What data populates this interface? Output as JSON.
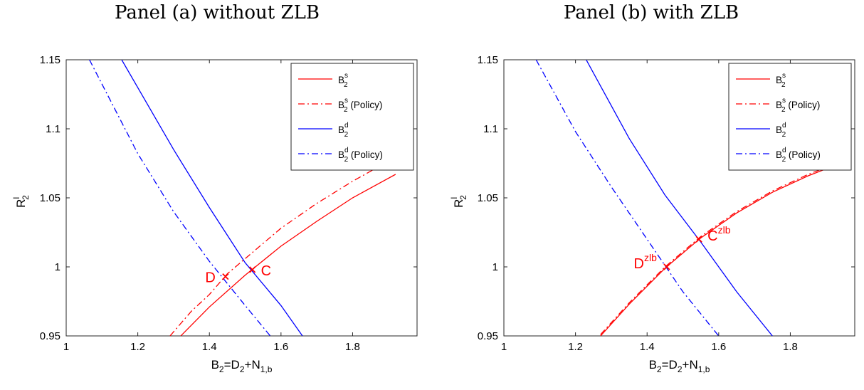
{
  "chart_data": [
    {
      "type": "line",
      "title": "Panel (a) without ZLB",
      "xlabel": {
        "main": "B",
        "sub1": "2",
        "mid": "=D",
        "sub2": "2",
        "plus": "+N",
        "sub3": "1,b"
      },
      "ylabel": {
        "main": "R",
        "sup": "l",
        "sub": "2"
      },
      "xlim": [
        1,
        1.98
      ],
      "ylim": [
        0.95,
        1.15
      ],
      "xticks": [
        "1",
        "1.2",
        "1.4",
        "1.6",
        "1.8"
      ],
      "yticks": [
        "0.95",
        "1",
        "1.05",
        "1.1",
        "1.15"
      ],
      "legend_position": "top-right",
      "series": [
        {
          "name": "B",
          "sub": "2",
          "sup": "s",
          "suffix": "",
          "color": "#ff0000",
          "dash": "solid",
          "x": [
            1.32,
            1.4,
            1.5,
            1.6,
            1.7,
            1.8,
            1.92
          ],
          "y": [
            0.95,
            0.971,
            0.994,
            1.015,
            1.033,
            1.05,
            1.067
          ]
        },
        {
          "name": "B",
          "sub": "2",
          "sup": "s",
          "suffix": " (Policy)",
          "color": "#ff0000",
          "dash": "dashdot",
          "x": [
            1.29,
            1.35,
            1.4,
            1.45,
            1.5,
            1.6,
            1.7,
            1.8,
            1.89
          ],
          "y": [
            0.95,
            0.968,
            0.98,
            0.995,
            1.006,
            1.028,
            1.046,
            1.062,
            1.075
          ]
        },
        {
          "name": "B",
          "sub": "2",
          "sup": "d",
          "suffix": "",
          "color": "#0000ff",
          "dash": "solid",
          "x": [
            1.155,
            1.3,
            1.4,
            1.5,
            1.6,
            1.66
          ],
          "y": [
            1.15,
            1.085,
            1.043,
            1.003,
            0.972,
            0.95
          ]
        },
        {
          "name": "B",
          "sub": "2",
          "sup": "d",
          "suffix": " (Policy)",
          "color": "#0000ff",
          "dash": "dashdot",
          "x": [
            1.065,
            1.2,
            1.3,
            1.4,
            1.5,
            1.57
          ],
          "y": [
            1.15,
            1.082,
            1.04,
            1.004,
            0.972,
            0.95
          ]
        }
      ],
      "points": [
        {
          "label": "D",
          "sup": "",
          "x": 1.445,
          "y": 0.993,
          "color": "#ff0000",
          "label_side": "left"
        },
        {
          "label": "C",
          "sup": "",
          "x": 1.52,
          "y": 0.998,
          "color": "#ff0000",
          "label_side": "right"
        }
      ]
    },
    {
      "type": "line",
      "title": "Panel (b) with ZLB",
      "xlabel": {
        "main": "B",
        "sub1": "2",
        "mid": "=D",
        "sub2": "2",
        "plus": "+N",
        "sub3": "1,b"
      },
      "ylabel": {
        "main": "R",
        "sup": "l",
        "sub": "2"
      },
      "xlim": [
        1,
        1.98
      ],
      "ylim": [
        0.95,
        1.15
      ],
      "xticks": [
        "1",
        "1.2",
        "1.4",
        "1.6",
        "1.8"
      ],
      "yticks": [
        "0.95",
        "1",
        "1.05",
        "1.1",
        "1.15"
      ],
      "legend_position": "top-right",
      "series": [
        {
          "name": "B",
          "sub": "2",
          "sup": "s",
          "suffix": "",
          "color": "#ff0000",
          "dash": "solid",
          "x": [
            1.27,
            1.35,
            1.45,
            1.55,
            1.65,
            1.75,
            1.85,
            1.92
          ],
          "y": [
            0.95,
            0.973,
            0.999,
            1.021,
            1.039,
            1.054,
            1.066,
            1.073
          ]
        },
        {
          "name": "B",
          "sub": "2",
          "sup": "s",
          "suffix": " (Policy)",
          "color": "#ff0000",
          "dash": "dashdot",
          "x": [
            1.27,
            1.35,
            1.45,
            1.55,
            1.65,
            1.75,
            1.85,
            1.92
          ],
          "y": [
            0.951,
            0.974,
            1.0,
            1.022,
            1.04,
            1.055,
            1.067,
            1.074
          ]
        },
        {
          "name": "B",
          "sub": "2",
          "sup": "d",
          "suffix": "",
          "color": "#0000ff",
          "dash": "solid",
          "x": [
            1.23,
            1.35,
            1.45,
            1.55,
            1.65,
            1.75
          ],
          "y": [
            1.15,
            1.093,
            1.052,
            1.018,
            0.982,
            0.95
          ]
        },
        {
          "name": "B",
          "sub": "2",
          "sup": "d",
          "suffix": " (Policy)",
          "color": "#0000ff",
          "dash": "dashdot",
          "x": [
            1.09,
            1.2,
            1.3,
            1.4,
            1.5,
            1.6
          ],
          "y": [
            1.15,
            1.098,
            1.058,
            1.02,
            0.982,
            0.95
          ]
        }
      ],
      "points": [
        {
          "label": "D",
          "sup": "zlb",
          "x": 1.455,
          "y": 1.0,
          "color": "#ff0000",
          "label_side": "left"
        },
        {
          "label": "C",
          "sup": "zlb",
          "x": 1.545,
          "y": 1.02,
          "color": "#ff0000",
          "label_side": "right"
        }
      ]
    }
  ]
}
